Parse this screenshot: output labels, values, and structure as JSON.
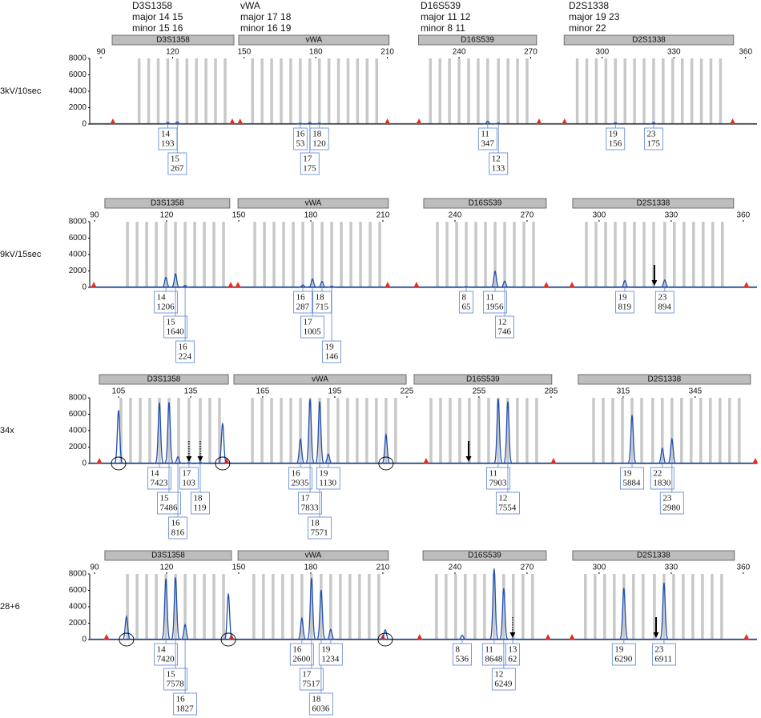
{
  "genotypes": [
    {
      "locus": "D3S1358",
      "major": "major 14 15",
      "minor": "minor 15 16"
    },
    {
      "locus": "vWA",
      "major": "major 17 18",
      "minor": "minor 16 19"
    },
    {
      "locus": "D16S539",
      "major": "major 11 12",
      "minor": "minor 8 11"
    },
    {
      "locus": "D2S1338",
      "major": "major 19 23",
      "minor": "minor 22"
    }
  ],
  "chart_data": [
    {
      "type": "peaks",
      "title": "3kV/10sec",
      "xlim": [
        85.3,
        364.8
      ],
      "xticks": [
        90,
        120,
        150,
        180,
        210,
        240,
        270,
        300,
        330,
        360
      ],
      "ylim": [
        0,
        8000
      ],
      "yticks": [
        0,
        2000,
        4000,
        6000,
        8000
      ],
      "color": "#1f4fb0",
      "loci": [
        {
          "name": "D3S1358",
          "range": [
            94.7,
            145.7
          ],
          "bins": [
            106,
            110,
            114,
            118,
            122,
            126,
            130,
            134,
            138,
            142
          ]
        },
        {
          "name": "vWA",
          "range": [
            147.7,
            210.7
          ],
          "bins": [
            153.5,
            157.5,
            161.5,
            165.5,
            169.5,
            173.5,
            177.5,
            181.5,
            185.5,
            189.5,
            193.5,
            197.5,
            201.5,
            205.5
          ]
        },
        {
          "name": "D16S539",
          "range": [
            223,
            272.5
          ],
          "bins": [
            228,
            232,
            236,
            240,
            244,
            248,
            252,
            256.5,
            260.5,
            264.5,
            268.5
          ]
        },
        {
          "name": "D2S1338",
          "range": [
            284,
            355
          ],
          "bins": [
            289.5,
            293.5,
            297.5,
            301.5,
            305.5,
            309.5,
            313.5,
            317.5,
            321.5,
            325.5,
            329.5,
            333.5,
            337.5,
            341.5,
            345.5,
            349.5
          ]
        }
      ],
      "peaks": [
        {
          "allele": 14,
          "size": 118,
          "height": 193
        },
        {
          "allele": 15,
          "size": 122,
          "height": 267
        },
        {
          "allele": 16,
          "size": 173.5,
          "height": 53
        },
        {
          "allele": 17,
          "size": 177.5,
          "height": 175
        },
        {
          "allele": 18,
          "size": 181.5,
          "height": 120
        },
        {
          "allele": 11,
          "size": 252,
          "height": 347
        },
        {
          "allele": 12,
          "size": 256.5,
          "height": 133
        },
        {
          "allele": 19,
          "size": 305.5,
          "height": 156
        },
        {
          "allele": 23,
          "size": 321.5,
          "height": 175
        }
      ],
      "artifacts": [],
      "standard_peaks": [
        95,
        145,
        148.3,
        210,
        223.2,
        273.5,
        284.2,
        354.6
      ],
      "arrows": []
    },
    {
      "type": "peaks",
      "title": "9kV/15sec",
      "xlim": [
        88,
        365.7
      ],
      "xticks": [
        90,
        120,
        150,
        180,
        210,
        240,
        270,
        300,
        330,
        360
      ],
      "ylim": [
        0,
        8000
      ],
      "yticks": [
        0,
        2000,
        4000,
        6000,
        8000
      ],
      "color": "#1f4fb0",
      "loci": [
        {
          "name": "D3S1358",
          "range": [
            94.3,
            146.3
          ],
          "bins": [
            103.7,
            107.7,
            111.7,
            115.7,
            119.7,
            123.7,
            127.7,
            131.7,
            135.7,
            139.7,
            143.7
          ]
        },
        {
          "name": "vWA",
          "range": [
            149.7,
            212.3
          ],
          "bins": [
            156.7,
            160.7,
            164.7,
            168.7,
            172.7,
            176.7,
            180.7,
            184.7,
            188.7,
            192.7,
            196.7,
            200.7,
            204.7,
            208.7
          ]
        },
        {
          "name": "D16S539",
          "range": [
            227,
            278
          ],
          "bins": [
            232.7,
            236.7,
            240.7,
            244.7,
            248.7,
            252.7,
            256.7,
            260.7,
            264.7,
            268.7,
            272.7
          ]
        },
        {
          "name": "D2S1338",
          "range": [
            289,
            356
          ],
          "bins": [
            294.7,
            298.7,
            302.7,
            306.7,
            310.7,
            314.7,
            318.7,
            322.7,
            327.3,
            331.3,
            335.3,
            339.3,
            343.3,
            347.3,
            351.3
          ]
        }
      ],
      "peaks": [
        {
          "allele": 14,
          "size": 119.7,
          "height": 1206
        },
        {
          "allele": 15,
          "size": 123.7,
          "height": 1640
        },
        {
          "allele": 16,
          "size": 127.7,
          "height": 224
        },
        {
          "allele": 16,
          "size": 176.7,
          "height": 287
        },
        {
          "allele": 17,
          "size": 180.7,
          "height": 1005
        },
        {
          "allele": 18,
          "size": 184.7,
          "height": 715
        },
        {
          "allele": 19,
          "size": 188.7,
          "height": 146
        },
        {
          "allele": 8,
          "size": 244.7,
          "height": 65
        },
        {
          "allele": 11,
          "size": 256.7,
          "height": 1956
        },
        {
          "allele": 12,
          "size": 260.7,
          "height": 746
        },
        {
          "allele": 19,
          "size": 310.7,
          "height": 819
        },
        {
          "allele": 23,
          "size": 327.3,
          "height": 894
        }
      ],
      "artifacts": [],
      "standard_peaks": [
        89.7,
        146.7,
        149.7,
        212,
        224,
        278,
        288.7,
        361.3
      ],
      "arrows": [
        {
          "at": 323,
          "style": "solid"
        }
      ]
    },
    {
      "type": "peaks",
      "title": "34x",
      "xlim": [
        93,
        370.7
      ],
      "xticks": [
        105,
        135,
        165,
        195,
        225,
        255,
        285,
        315,
        345
      ],
      "ylim": [
        0,
        8000
      ],
      "yticks": [
        0,
        2000,
        4000,
        6000,
        8000
      ],
      "color": "#1f4fb0",
      "loci": [
        {
          "name": "D3S1358",
          "range": [
            97,
            150.7
          ],
          "bins": [
            106,
            110,
            114,
            118,
            122,
            126,
            130,
            134.3,
            139,
            143,
            147
          ]
        },
        {
          "name": "vWA",
          "range": [
            153,
            224.7
          ],
          "bins": [
            160.7,
            164.7,
            168.7,
            172.7,
            176.7,
            180.7,
            184.7,
            188.7,
            192.3,
            196.3,
            200.3,
            204.3,
            208.3,
            212.3,
            216.3,
            220.3
          ]
        },
        {
          "name": "D16S539",
          "range": [
            228,
            285.3
          ],
          "bins": [
            235,
            239,
            243,
            247,
            251,
            255,
            259,
            263,
            267,
            271,
            275,
            279
          ]
        },
        {
          "name": "D2S1338",
          "range": [
            296.3,
            368
          ],
          "bins": [
            302.7,
            306.7,
            310.7,
            314.7,
            318.7,
            322.7,
            327.3,
            331.3,
            335.3,
            339.3,
            343.3,
            347.3,
            351.3,
            355.3,
            359.3,
            363.3
          ]
        }
      ],
      "peaks": [
        {
          "allele": 14,
          "size": 122,
          "height": 7423
        },
        {
          "allele": 15,
          "size": 126,
          "height": 7486
        },
        {
          "allele": 16,
          "size": 129.7,
          "height": 816
        },
        {
          "allele": 17,
          "size": 134.3,
          "height": 103
        },
        {
          "allele": 18,
          "size": 139,
          "height": 119
        },
        {
          "allele": 16,
          "size": 180.7,
          "height": 2935
        },
        {
          "allele": 17,
          "size": 184.7,
          "height": 7833
        },
        {
          "allele": 18,
          "size": 188.7,
          "height": 7571
        },
        {
          "allele": 19,
          "size": 192.3,
          "height": 1130
        },
        {
          "allele": 11,
          "size": 263,
          "height": 7903
        },
        {
          "allele": 12,
          "size": 267,
          "height": 7554
        },
        {
          "allele": 19,
          "size": 318.7,
          "height": 5884
        },
        {
          "allele": 22,
          "size": 331.3,
          "height": 1830
        },
        {
          "allele": 23,
          "size": 335.3,
          "height": 2980
        }
      ],
      "artifacts": [
        {
          "size": 105,
          "height": 6500
        },
        {
          "size": 148.3,
          "height": 4900
        },
        {
          "size": 216.3,
          "height": 3500
        }
      ],
      "standard_peaks": [
        97,
        150,
        233,
        286,
        370
      ],
      "arrows": [
        {
          "at": 134.3,
          "style": "dotted"
        },
        {
          "at": 139,
          "style": "dotted"
        },
        {
          "at": 250.7,
          "style": "solid"
        }
      ]
    },
    {
      "type": "peaks",
      "title": "28+6",
      "xlim": [
        88,
        365.7
      ],
      "xticks": [
        90,
        120,
        150,
        180,
        210,
        240,
        270,
        300,
        330,
        360
      ],
      "ylim": [
        0,
        8000
      ],
      "yticks": [
        0,
        2000,
        4000,
        6000,
        8000
      ],
      "color": "#1f4fb0",
      "loci": [
        {
          "name": "D3S1358",
          "range": [
            94.3,
            147
          ],
          "bins": [
            103.7,
            107.7,
            111.7,
            115.7,
            119.7,
            123.7,
            127.7,
            131.7,
            135.7,
            139.7,
            143.7
          ]
        },
        {
          "name": "vWA",
          "range": [
            149.7,
            212.3
          ],
          "bins": [
            156.3,
            160.3,
            164.3,
            168.3,
            172.3,
            176.3,
            180.3,
            184.3,
            188.3,
            192.3,
            196.3,
            200.3,
            204.3,
            208.3
          ]
        },
        {
          "name": "D16S539",
          "range": [
            226.7,
            278
          ],
          "bins": [
            232.3,
            236.3,
            240.3,
            244.3,
            248.3,
            252.3,
            256.3,
            260.3,
            264.3,
            268.3,
            272.3
          ]
        },
        {
          "name": "D2S1338",
          "range": [
            289,
            356.3
          ],
          "bins": [
            294.3,
            298.3,
            302.3,
            306.3,
            310.3,
            314.3,
            318.3,
            323,
            327,
            331,
            335,
            339,
            343,
            347,
            351
          ]
        }
      ],
      "peaks": [
        {
          "allele": 14,
          "size": 119.7,
          "height": 7420
        },
        {
          "allele": 15,
          "size": 123.7,
          "height": 7578
        },
        {
          "allele": 16,
          "size": 127.7,
          "height": 1827
        },
        {
          "allele": 16,
          "size": 176.3,
          "height": 2600
        },
        {
          "allele": 17,
          "size": 180.3,
          "height": 7517
        },
        {
          "allele": 18,
          "size": 184.3,
          "height": 6036
        },
        {
          "allele": 19,
          "size": 188.3,
          "height": 1234
        },
        {
          "allele": 8,
          "size": 243,
          "height": 536
        },
        {
          "allele": 11,
          "size": 256.3,
          "height": 8648
        },
        {
          "allele": 12,
          "size": 260.3,
          "height": 6249
        },
        {
          "allele": 13,
          "size": 264,
          "height": 62
        },
        {
          "allele": 19,
          "size": 310.3,
          "height": 6290
        },
        {
          "allele": 23,
          "size": 327,
          "height": 6911
        }
      ],
      "artifacts": [
        {
          "size": 103.3,
          "height": 2800
        },
        {
          "size": 145.7,
          "height": 5600
        },
        {
          "size": 211,
          "height": 1200
        }
      ],
      "standard_peaks": [
        95,
        147,
        210,
        225.3,
        278.7,
        288.7,
        361.3
      ],
      "arrows": [
        {
          "at": 264,
          "style": "dotted"
        },
        {
          "at": 323.7,
          "style": "solid"
        }
      ]
    }
  ]
}
